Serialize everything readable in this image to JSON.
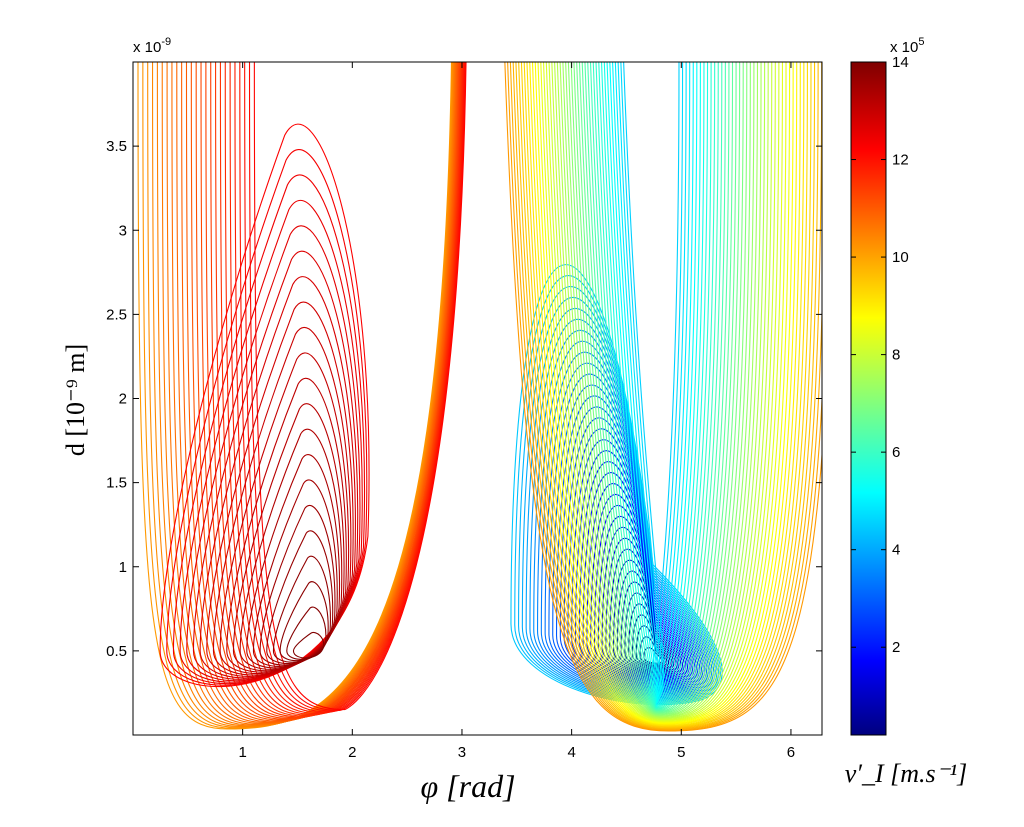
{
  "chart_data": {
    "type": "contour",
    "colormap": "jet",
    "xlabel": "φ [rad]",
    "ylabel": "d [10⁻⁹ m]",
    "x_range": [
      0,
      6.2832
    ],
    "y_range": [
      0,
      4e-09
    ],
    "x_ticks": [
      1,
      2,
      3,
      4,
      5,
      6
    ],
    "y_ticks": [
      0.5,
      1,
      1.5,
      2,
      2.5,
      3,
      3.5
    ],
    "y_ticks_labels": [
      "0.5",
      "1",
      "1.5",
      "2",
      "2.5",
      "3",
      "3.5"
    ],
    "x_ticks_labels": [
      "1",
      "2",
      "3",
      "4",
      "5",
      "6"
    ],
    "y_exponent_label": "x 10",
    "y_exponent_power": "-9",
    "colorbar": {
      "label": "v′_I [m.s⁻¹]",
      "exponent_label": "x 10",
      "exponent_power": "5",
      "ticks": [
        2,
        4,
        6,
        8,
        10,
        12,
        14
      ],
      "ticks_labels": [
        "2",
        "4",
        "6",
        "8",
        "10",
        "12",
        "14"
      ],
      "range": [
        0.2,
        14
      ]
    },
    "features": [
      {
        "kind": "maximum",
        "phi": 1.6,
        "d": 5e-10,
        "value": 1400000.0
      },
      {
        "kind": "minimum",
        "phi": 4.75,
        "d": 4.5e-10,
        "value": 20000.0
      }
    ],
    "grid": false
  }
}
